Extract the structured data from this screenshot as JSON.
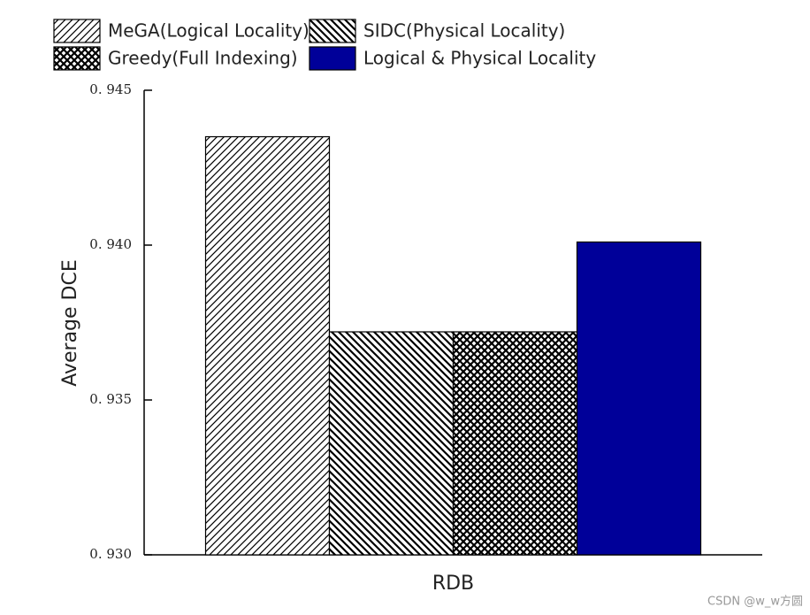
{
  "chart_data": {
    "type": "bar",
    "categories": [
      "RDB"
    ],
    "ylabel": "Average DCE",
    "series": [
      {
        "name": "MeGA(Logical Locality)",
        "color": "#000000",
        "hatch": "/",
        "values": [
          0.9435
        ]
      },
      {
        "name": "SIDC(Physical Locality)",
        "color": "#000000",
        "hatch": "\\",
        "values": [
          0.9372
        ]
      },
      {
        "name": "Greedy(Full Indexing)",
        "color": "#000000",
        "hatch": "x",
        "values": [
          0.9372
        ]
      },
      {
        "name": "Logical & Physical Locality",
        "color": "#000099",
        "values": [
          0.9401
        ]
      }
    ],
    "ylim": [
      0.93,
      0.945
    ],
    "yticks": [
      {
        "value": 0.93,
        "label": "0. 930"
      },
      {
        "value": 0.935,
        "label": "0. 935"
      },
      {
        "value": 0.94,
        "label": "0. 940"
      },
      {
        "value": 0.945,
        "label": "0. 945"
      }
    ],
    "watermark": "CSDN @w_w方圆"
  }
}
